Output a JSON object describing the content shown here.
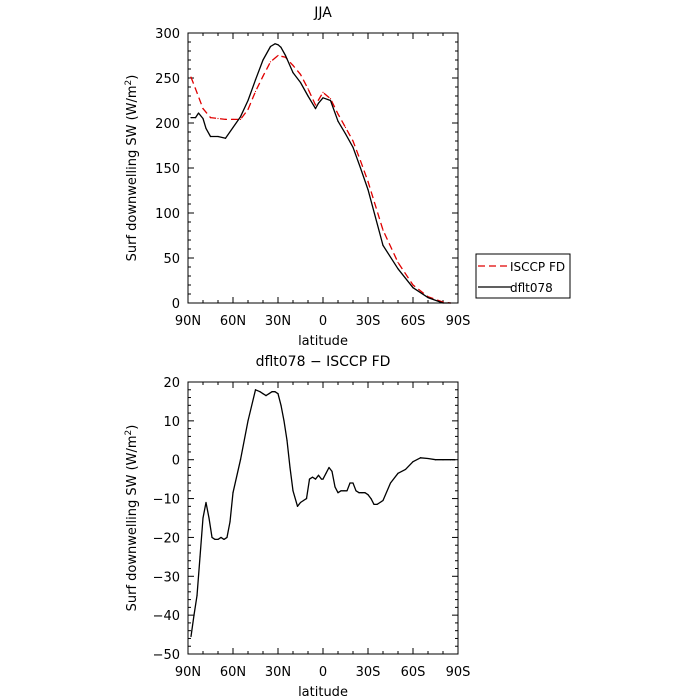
{
  "chart_data": [
    {
      "type": "line",
      "title": "JJA",
      "xlabel": "latitude",
      "ylabel": "Surf downwelling SW (W/m²)",
      "ylabel_parts": {
        "main": "Surf downwelling SW (W/m",
        "sup": "2",
        "end": ")"
      },
      "xlim": [
        90,
        -90
      ],
      "ylim": [
        0,
        300
      ],
      "x_ticks": [
        90,
        60,
        30,
        0,
        -30,
        -60,
        -90
      ],
      "x_tick_labels": [
        "90N",
        "60N",
        "30N",
        "0",
        "30S",
        "60S",
        "90S"
      ],
      "y_ticks": [
        0,
        50,
        100,
        150,
        200,
        250,
        300
      ],
      "y_tick_labels": [
        "0",
        "50",
        "100",
        "150",
        "200",
        "250",
        "300"
      ],
      "legend_position": "right, outside plot",
      "series": [
        {
          "name": "ISCCP FD",
          "color": "#e00000",
          "dash": "dashed",
          "x": [
            88,
            85,
            80,
            75,
            70,
            65,
            60,
            55,
            50,
            45,
            40,
            35,
            30,
            25,
            20,
            15,
            10,
            5,
            0,
            -5,
            -10,
            -15,
            -20,
            -25,
            -30,
            -40,
            -50,
            -60,
            -70,
            -80,
            -85
          ],
          "y": [
            251,
            238,
            216,
            206,
            205,
            204,
            204,
            204,
            215,
            235,
            252,
            268,
            275,
            273,
            264,
            254,
            238,
            220,
            234,
            227,
            210,
            195,
            180,
            158,
            135,
            81,
            45,
            20,
            7,
            1,
            0
          ]
        },
        {
          "name": "dflt078",
          "color": "#000000",
          "dash": "solid",
          "x": [
            88,
            85,
            83,
            80,
            78,
            75,
            70,
            65,
            60,
            55,
            50,
            45,
            40,
            35,
            32,
            30,
            28,
            25,
            20,
            15,
            10,
            5,
            3,
            0,
            -5,
            -10,
            -15,
            -20,
            -25,
            -30,
            -40,
            -50,
            -60,
            -70,
            -80,
            -85
          ],
          "y": [
            206,
            206,
            211,
            205,
            194,
            185,
            185,
            183,
            195,
            207,
            225,
            248,
            270,
            285,
            288,
            287,
            284,
            275,
            256,
            245,
            230,
            216,
            222,
            228,
            225,
            202,
            188,
            173,
            150,
            126,
            64,
            38,
            17,
            6,
            0,
            0
          ]
        }
      ]
    },
    {
      "type": "line",
      "title": "dflt078 − ISCCP FD",
      "xlabel": "latitude",
      "ylabel": "Surf downwelling SW (W/m²)",
      "ylabel_parts": {
        "main": "Surf downwelling SW (W/m",
        "sup": "2",
        "end": ")"
      },
      "xlim": [
        90,
        -90
      ],
      "ylim": [
        -50,
        20
      ],
      "x_ticks": [
        90,
        60,
        30,
        0,
        -30,
        -60,
        -90
      ],
      "x_tick_labels": [
        "90N",
        "60N",
        "30N",
        "0",
        "30S",
        "60S",
        "90S"
      ],
      "y_ticks": [
        -50,
        -40,
        -30,
        -20,
        -10,
        0,
        10,
        20
      ],
      "y_tick_labels": [
        "−50",
        "−40",
        "−30",
        "−20",
        "−10",
        "0",
        "10",
        "20"
      ],
      "series": [
        {
          "color": "#000000",
          "dash": "solid",
          "x": [
            88,
            86,
            84,
            82,
            80,
            78,
            76,
            74,
            72,
            70,
            68,
            66,
            64,
            62,
            60,
            55,
            50,
            45,
            42,
            40,
            38,
            36,
            34,
            32,
            30,
            28,
            26,
            24,
            22,
            20,
            17,
            15,
            13,
            11,
            9,
            7,
            5,
            3,
            1,
            0,
            -2,
            -4,
            -6,
            -8,
            -10,
            -12,
            -14,
            -16,
            -18,
            -20,
            -22,
            -24,
            -26,
            -28,
            -30,
            -32,
            -34,
            -36,
            -38,
            -40,
            -45,
            -50,
            -55,
            -60,
            -65,
            -70,
            -75,
            -80,
            -85,
            -88
          ],
          "y": [
            -45.5,
            -40,
            -35,
            -25,
            -15,
            -11,
            -15,
            -20,
            -20.5,
            -20.5,
            -20,
            -20.5,
            -20,
            -16,
            -8.5,
            0,
            10,
            18,
            17.5,
            17,
            16.5,
            17,
            17.5,
            17.5,
            17,
            14,
            10,
            5,
            -2,
            -8,
            -12,
            -11,
            -10.5,
            -10,
            -5,
            -4.5,
            -5,
            -4,
            -5,
            -5,
            -3.5,
            -2,
            -3,
            -7,
            -8.5,
            -8,
            -8,
            -8,
            -6,
            -6,
            -8,
            -8.5,
            -8.5,
            -8.5,
            -9,
            -10,
            -11.5,
            -11.5,
            -11,
            -10.5,
            -6,
            -3.5,
            -2.5,
            -0.5,
            0.5,
            0.3,
            0,
            0,
            0,
            0
          ]
        }
      ]
    }
  ]
}
